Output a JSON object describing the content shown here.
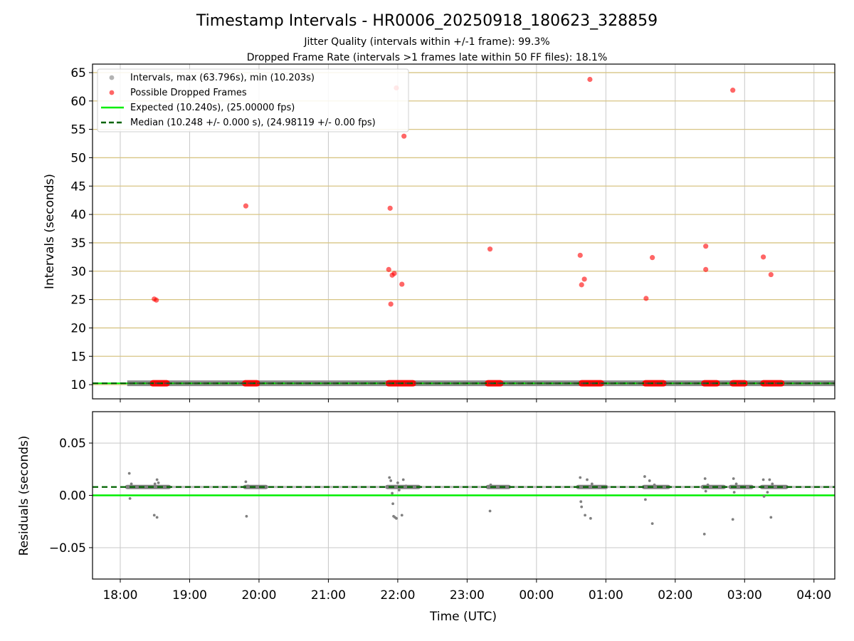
{
  "chart_data": [
    {
      "type": "scatter",
      "title": "Timestamp Intervals - HR0006_20250918_180623_328859",
      "subtitle_1": "Jitter Quality (intervals within +/-1 frame): 99.3%",
      "subtitle_2": "Dropped Frame Rate (intervals >1 frames late within 50 FF files): 18.1%",
      "xlabel": "Time (UTC)",
      "ylabel": "Intervals (seconds)",
      "xlim_hours": [
        17.6,
        28.3
      ],
      "ylim": [
        7.5,
        66.5
      ],
      "yticks": [
        10,
        15,
        20,
        25,
        30,
        35,
        40,
        45,
        50,
        55,
        60,
        65
      ],
      "xticks": [
        {
          "h": 18,
          "label": "18:00"
        },
        {
          "h": 19,
          "label": "19:00"
        },
        {
          "h": 20,
          "label": "20:00"
        },
        {
          "h": 21,
          "label": "21:00"
        },
        {
          "h": 22,
          "label": "22:00"
        },
        {
          "h": 23,
          "label": "23:00"
        },
        {
          "h": 24,
          "label": "00:00"
        },
        {
          "h": 25,
          "label": "01:00"
        },
        {
          "h": 26,
          "label": "02:00"
        },
        {
          "h": 27,
          "label": "03:00"
        },
        {
          "h": 28,
          "label": "04:00"
        }
      ],
      "grid": true,
      "legend_position": "top-left",
      "legend": [
        {
          "label": "Intervals, max (63.796s), min (10.203s)",
          "marker": "dot",
          "color": "#808080"
        },
        {
          "label": "Possible Dropped Frames",
          "marker": "dot",
          "color": "#ff0000"
        },
        {
          "label": "Expected (10.240s), (25.00000 fps)",
          "marker": "line",
          "color": "#00ee00"
        },
        {
          "label": "Median (10.248 +/- 0.000 s), (24.98119 +/- 0.00 fps)",
          "marker": "dashed",
          "color": "#006400"
        }
      ],
      "series": [
        {
          "name": "Intervals",
          "color": "#808080",
          "x_range_hours": [
            18.1,
            28.3
          ],
          "y": 10.248
        },
        {
          "name": "Possible Dropped Frames",
          "color": "#ff0000",
          "points": [
            {
              "x": 18.49,
              "y": 25.1
            },
            {
              "x": 18.52,
              "y": 24.9
            },
            {
              "x": 19.81,
              "y": 41.5
            },
            {
              "x": 21.87,
              "y": 30.3
            },
            {
              "x": 21.89,
              "y": 41.1
            },
            {
              "x": 21.9,
              "y": 24.2
            },
            {
              "x": 21.92,
              "y": 29.3
            },
            {
              "x": 21.95,
              "y": 29.6
            },
            {
              "x": 21.98,
              "y": 62.3
            },
            {
              "x": 22.06,
              "y": 27.7
            },
            {
              "x": 22.09,
              "y": 53.8
            },
            {
              "x": 23.33,
              "y": 33.9
            },
            {
              "x": 24.63,
              "y": 32.8
            },
            {
              "x": 24.65,
              "y": 27.6
            },
            {
              "x": 24.69,
              "y": 28.6
            },
            {
              "x": 24.77,
              "y": 63.8
            },
            {
              "x": 25.58,
              "y": 25.2
            },
            {
              "x": 25.67,
              "y": 32.4
            },
            {
              "x": 26.44,
              "y": 34.4
            },
            {
              "x": 26.44,
              "y": 30.3
            },
            {
              "x": 26.83,
              "y": 61.9
            },
            {
              "x": 27.27,
              "y": 32.5
            },
            {
              "x": 27.38,
              "y": 29.4
            }
          ],
          "dropped_runs_at_y": 10.24,
          "dropped_runs": [
            [
              18.47,
              18.67
            ],
            [
              19.8,
              19.97
            ],
            [
              21.87,
              22.22
            ],
            [
              23.3,
              23.48
            ],
            [
              24.65,
              24.93
            ],
            [
              25.57,
              25.83
            ],
            [
              26.42,
              26.6
            ],
            [
              26.83,
              27.0
            ],
            [
              27.27,
              27.53
            ]
          ]
        },
        {
          "name": "Expected",
          "color": "#00ee00",
          "y": 10.24
        },
        {
          "name": "Median",
          "color": "#006400",
          "y": 10.248
        }
      ]
    },
    {
      "type": "scatter",
      "xlabel": "Time (UTC)",
      "ylabel": "Residuals (seconds)",
      "ylim": [
        -0.08,
        0.08
      ],
      "yticks": [
        {
          "v": 0.05,
          "label": "0.05"
        },
        {
          "v": 0.0,
          "label": "0.00"
        },
        {
          "v": -0.05,
          "label": "−0.05"
        }
      ],
      "grid": true,
      "series": [
        {
          "name": "Expected",
          "color": "#00ee00",
          "y": 0.0
        },
        {
          "name": "Median",
          "color": "#006400",
          "y": 0.008
        },
        {
          "name": "Residual band",
          "color": "#808080",
          "y": 0.008,
          "x_range_hours": [
            18.1,
            28.3
          ]
        },
        {
          "name": "Residuals",
          "color": "#808080",
          "clusters": [
            {
              "start": 18.1,
              "end": 18.7,
              "points": [
                {
                  "x": 18.13,
                  "y": 0.021
                },
                {
                  "x": 18.14,
                  "y": -0.003
                },
                {
                  "x": 18.16,
                  "y": 0.011
                },
                {
                  "x": 18.49,
                  "y": -0.019
                },
                {
                  "x": 18.53,
                  "y": -0.021
                },
                {
                  "x": 18.53,
                  "y": 0.015
                },
                {
                  "x": 18.55,
                  "y": 0.012
                },
                {
                  "x": 18.5,
                  "y": 0.011
                }
              ]
            },
            {
              "start": 19.8,
              "end": 20.1,
              "points": [
                {
                  "x": 19.81,
                  "y": 0.013
                },
                {
                  "x": 19.82,
                  "y": -0.02
                },
                {
                  "x": 19.84,
                  "y": 0.009
                }
              ]
            },
            {
              "start": 21.85,
              "end": 22.3,
              "points": [
                {
                  "x": 21.88,
                  "y": 0.017
                },
                {
                  "x": 21.9,
                  "y": 0.014
                },
                {
                  "x": 21.92,
                  "y": 0.002
                },
                {
                  "x": 21.93,
                  "y": -0.008
                },
                {
                  "x": 21.94,
                  "y": -0.02
                },
                {
                  "x": 21.96,
                  "y": -0.021
                },
                {
                  "x": 21.98,
                  "y": -0.022
                },
                {
                  "x": 22.0,
                  "y": 0.012
                },
                {
                  "x": 22.02,
                  "y": 0.005
                },
                {
                  "x": 22.06,
                  "y": -0.019
                },
                {
                  "x": 22.08,
                  "y": 0.015
                },
                {
                  "x": 22.12,
                  "y": 0.009
                }
              ]
            },
            {
              "start": 23.3,
              "end": 23.6,
              "points": [
                {
                  "x": 23.33,
                  "y": -0.015
                },
                {
                  "x": 23.34,
                  "y": 0.01
                }
              ]
            },
            {
              "start": 24.6,
              "end": 25.0,
              "points": [
                {
                  "x": 24.63,
                  "y": 0.017
                },
                {
                  "x": 24.64,
                  "y": -0.006
                },
                {
                  "x": 24.65,
                  "y": -0.011
                },
                {
                  "x": 24.7,
                  "y": -0.019
                },
                {
                  "x": 24.73,
                  "y": 0.015
                },
                {
                  "x": 24.78,
                  "y": -0.022
                },
                {
                  "x": 24.8,
                  "y": 0.011
                }
              ]
            },
            {
              "start": 25.55,
              "end": 25.9,
              "points": [
                {
                  "x": 25.56,
                  "y": 0.018
                },
                {
                  "x": 25.57,
                  "y": -0.004
                },
                {
                  "x": 25.63,
                  "y": 0.014
                },
                {
                  "x": 25.67,
                  "y": -0.027
                },
                {
                  "x": 25.7,
                  "y": 0.01
                }
              ]
            },
            {
              "start": 26.4,
              "end": 26.7,
              "points": [
                {
                  "x": 26.42,
                  "y": -0.037
                },
                {
                  "x": 26.43,
                  "y": 0.016
                },
                {
                  "x": 26.44,
                  "y": 0.004
                },
                {
                  "x": 26.47,
                  "y": 0.01
                }
              ]
            },
            {
              "start": 26.8,
              "end": 27.1,
              "points": [
                {
                  "x": 26.83,
                  "y": -0.023
                },
                {
                  "x": 26.84,
                  "y": 0.016
                },
                {
                  "x": 26.85,
                  "y": 0.003
                },
                {
                  "x": 26.88,
                  "y": 0.011
                }
              ]
            },
            {
              "start": 27.25,
              "end": 27.6,
              "points": [
                {
                  "x": 27.27,
                  "y": 0.015
                },
                {
                  "x": 27.28,
                  "y": -0.001
                },
                {
                  "x": 27.33,
                  "y": 0.003
                },
                {
                  "x": 27.36,
                  "y": 0.015
                },
                {
                  "x": 27.38,
                  "y": -0.021
                },
                {
                  "x": 27.4,
                  "y": 0.011
                }
              ]
            }
          ]
        }
      ]
    }
  ]
}
